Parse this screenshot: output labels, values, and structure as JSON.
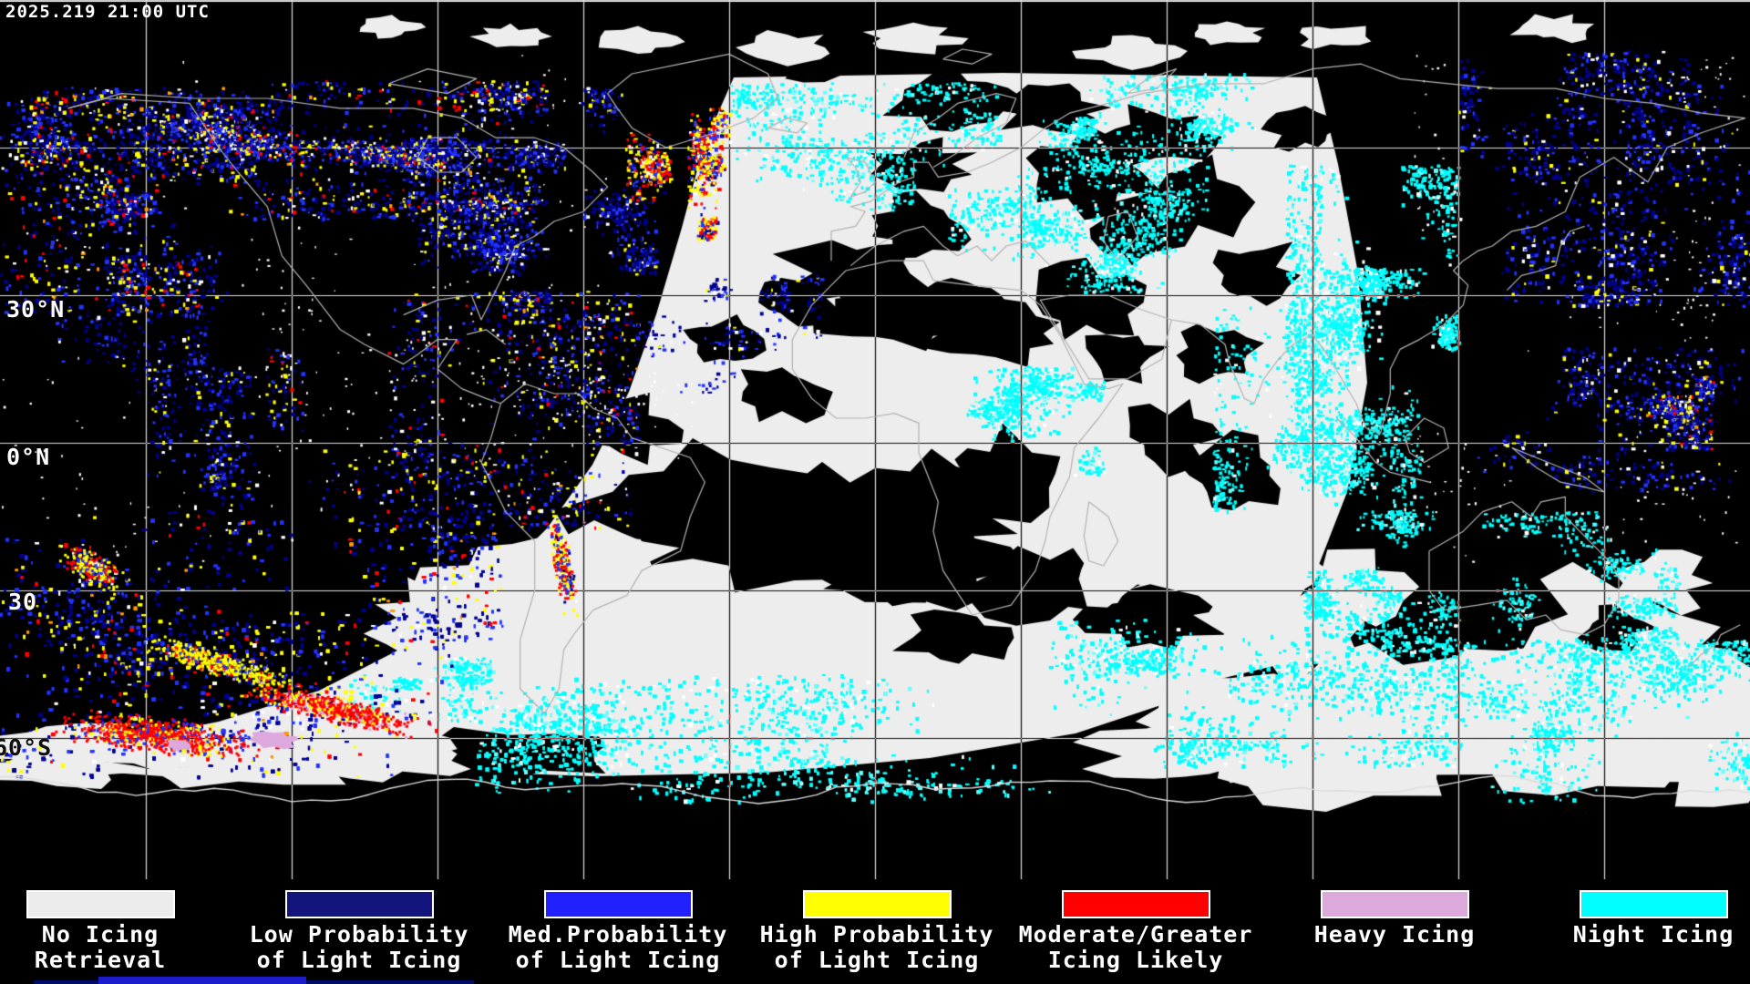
{
  "header": {
    "timestamp": "2025.219 21:00 UTC"
  },
  "graticule": {
    "grid_spacing_deg": 30,
    "labels": [
      {
        "text": "30°N"
      },
      {
        "text": "0°N"
      },
      {
        "text": "30"
      },
      {
        "text": "60°S"
      }
    ]
  },
  "legend": {
    "items": [
      {
        "label_lines": [
          "No Icing",
          "Retrieval"
        ],
        "color": "#ececec"
      },
      {
        "label_lines": [
          "Low Probability",
          "of Light Icing"
        ],
        "color": "#14147d"
      },
      {
        "label_lines": [
          "Med.Probability",
          "of Light Icing"
        ],
        "color": "#2121ff"
      },
      {
        "label_lines": [
          "High Probability",
          "of Light Icing"
        ],
        "color": "#ffff00"
      },
      {
        "label_lines": [
          "Moderate/Greater",
          "Icing Likely"
        ],
        "color": "#ff0000"
      },
      {
        "label_lines": [
          "Heavy Icing"
        ],
        "color": "#dda9dd"
      },
      {
        "label_lines": [
          "Night Icing"
        ],
        "color": "#00ffff"
      }
    ]
  },
  "map": {
    "background": "#000000",
    "grid_color": "#ffffff",
    "coastline_color": "#b4b4b4",
    "day_cloud_color": "#ededed"
  }
}
